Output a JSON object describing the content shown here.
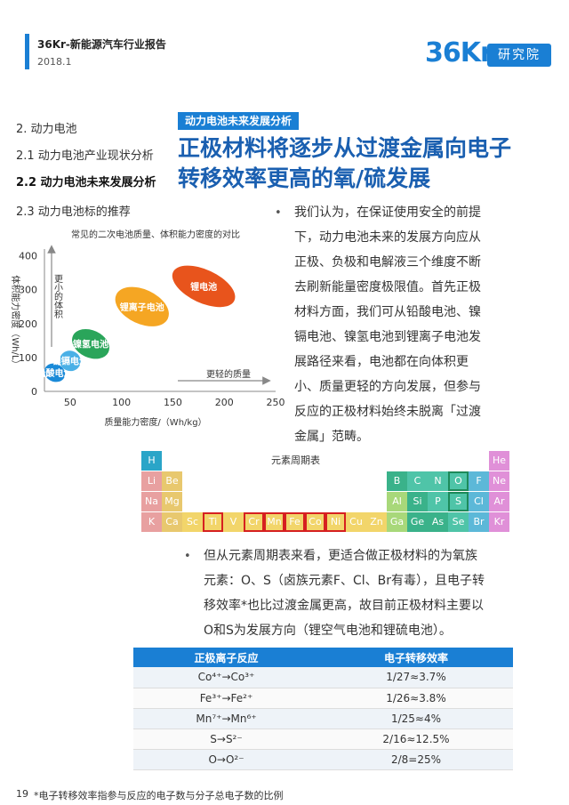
{
  "header": {
    "title": "36Kr-新能源汽车行业报告",
    "date": "2018.1",
    "logo_num": "36Kr",
    "logo_text": "研究院"
  },
  "nav": {
    "items": [
      {
        "label": "2. 动力电池"
      },
      {
        "label": "2.1 动力电池产业现状分析"
      },
      {
        "label": "2.2 动力电池未来发展分析"
      },
      {
        "label": "2.3 动力电池标的推荐"
      }
    ]
  },
  "section": {
    "tag": "动力电池未来发展分析",
    "heading": "正极材料将逐步从过渡金属向电子转移效率更高的氧/硫发展"
  },
  "chart_data": {
    "type": "bubble",
    "title": "常见的二次电池质量、体积能力密度的对比",
    "xlabel": "质量能力密度/（Wh/kg）",
    "ylabel": "体积能力密度（Wh/L）",
    "xticks": [
      50,
      100,
      150,
      200,
      250
    ],
    "yticks": [
      0,
      100,
      200,
      300,
      400
    ],
    "xlim": [
      25,
      250
    ],
    "ylim": [
      0,
      420
    ],
    "arrow_x_label": "更轻的质量",
    "arrow_y_label": "更小的体积",
    "series": [
      {
        "name": "铅酸电池",
        "x": 35,
        "y": 55,
        "rx": 12,
        "ry": 45,
        "color": "#1a8ad8"
      },
      {
        "name": "镍镉电池",
        "x": 50,
        "y": 90,
        "rx": 12,
        "ry": 55,
        "color": "#4ab0e6"
      },
      {
        "name": "镍氢电池",
        "x": 70,
        "y": 140,
        "rx": 22,
        "ry": 85,
        "color": "#2aa55a"
      },
      {
        "name": "锂离子电池",
        "x": 120,
        "y": 250,
        "rx": 32,
        "ry": 115,
        "color": "#f5a623"
      },
      {
        "name": "锂电池",
        "x": 180,
        "y": 310,
        "rx": 38,
        "ry": 110,
        "color": "#e8541c"
      }
    ]
  },
  "para1": {
    "bullet": "•",
    "lines": [
      "我们认为，在保证使用安全的前提",
      "下，动力电池未来的发展方向应从",
      "正极、负极和电解液三个维度不断",
      "去刷新能量密度极限值。首先正极",
      "材料方面，我们可从铅酸电池、镍",
      "镉电池、镍氢电池到锂离子电池发",
      "展路径来看，电池都在向体积更",
      "小、质量更轻的方向发展，但参与",
      "反应的正极材料始终未脱离「过渡",
      "金属」范畴。"
    ]
  },
  "periodic": {
    "title": "元素周期表",
    "colors": {
      "H": "#2aa5c8",
      "alkali": "#e8a0a0",
      "alkaline": "#e8c86e",
      "transition": "#f2d56a",
      "post": "#a8d87a",
      "metalloid": "#3ab28a",
      "nonmetal": "#4fc4a8",
      "halogen": "#5cb8d8",
      "noble": "#e090d8"
    },
    "cells": [
      {
        "sym": "H",
        "col": 0,
        "row": 0,
        "cat": "H"
      },
      {
        "sym": "He",
        "col": 17,
        "row": 0,
        "cat": "noble"
      },
      {
        "sym": "Li",
        "col": 0,
        "row": 1,
        "cat": "alkali"
      },
      {
        "sym": "Be",
        "col": 1,
        "row": 1,
        "cat": "alkaline"
      },
      {
        "sym": "B",
        "col": 12,
        "row": 1,
        "cat": "metalloid"
      },
      {
        "sym": "C",
        "col": 13,
        "row": 1,
        "cat": "nonmetal"
      },
      {
        "sym": "N",
        "col": 14,
        "row": 1,
        "cat": "nonmetal"
      },
      {
        "sym": "O",
        "col": 15,
        "row": 1,
        "cat": "nonmetal",
        "highlight": "green"
      },
      {
        "sym": "F",
        "col": 16,
        "row": 1,
        "cat": "halogen"
      },
      {
        "sym": "Ne",
        "col": 17,
        "row": 1,
        "cat": "noble"
      },
      {
        "sym": "Na",
        "col": 0,
        "row": 2,
        "cat": "alkali"
      },
      {
        "sym": "Mg",
        "col": 1,
        "row": 2,
        "cat": "alkaline"
      },
      {
        "sym": "Al",
        "col": 12,
        "row": 2,
        "cat": "post"
      },
      {
        "sym": "Si",
        "col": 13,
        "row": 2,
        "cat": "metalloid"
      },
      {
        "sym": "P",
        "col": 14,
        "row": 2,
        "cat": "nonmetal"
      },
      {
        "sym": "S",
        "col": 15,
        "row": 2,
        "cat": "nonmetal",
        "highlight": "green"
      },
      {
        "sym": "Cl",
        "col": 16,
        "row": 2,
        "cat": "halogen"
      },
      {
        "sym": "Ar",
        "col": 17,
        "row": 2,
        "cat": "noble"
      },
      {
        "sym": "K",
        "col": 0,
        "row": 3,
        "cat": "alkali"
      },
      {
        "sym": "Ca",
        "col": 1,
        "row": 3,
        "cat": "alkaline"
      },
      {
        "sym": "Sc",
        "col": 2,
        "row": 3,
        "cat": "transition"
      },
      {
        "sym": "Ti",
        "col": 3,
        "row": 3,
        "cat": "transition",
        "highlight": "red"
      },
      {
        "sym": "V",
        "col": 4,
        "row": 3,
        "cat": "transition"
      },
      {
        "sym": "Cr",
        "col": 5,
        "row": 3,
        "cat": "transition",
        "highlight": "red"
      },
      {
        "sym": "Mn",
        "col": 6,
        "row": 3,
        "cat": "transition",
        "highlight": "red"
      },
      {
        "sym": "Fe",
        "col": 7,
        "row": 3,
        "cat": "transition",
        "highlight": "red"
      },
      {
        "sym": "Co",
        "col": 8,
        "row": 3,
        "cat": "transition",
        "highlight": "red"
      },
      {
        "sym": "Ni",
        "col": 9,
        "row": 3,
        "cat": "transition",
        "highlight": "red"
      },
      {
        "sym": "Cu",
        "col": 10,
        "row": 3,
        "cat": "transition"
      },
      {
        "sym": "Zn",
        "col": 11,
        "row": 3,
        "cat": "transition"
      },
      {
        "sym": "Ga",
        "col": 12,
        "row": 3,
        "cat": "post"
      },
      {
        "sym": "Ge",
        "col": 13,
        "row": 3,
        "cat": "metalloid"
      },
      {
        "sym": "As",
        "col": 14,
        "row": 3,
        "cat": "metalloid"
      },
      {
        "sym": "Se",
        "col": 15,
        "row": 3,
        "cat": "nonmetal"
      },
      {
        "sym": "Br",
        "col": 16,
        "row": 3,
        "cat": "halogen"
      },
      {
        "sym": "Kr",
        "col": 17,
        "row": 3,
        "cat": "noble"
      }
    ]
  },
  "para2": {
    "bullet": "•",
    "lines": [
      "但从元素周期表来看，更适合做正极材料的为氧族",
      "元素：O、S（卤族元素F、Cl、Br有毒），且电子转",
      "移效率*也比过渡金属更高，故目前正极材料主要以",
      "O和S为发展方向（锂空气电池和锂硫电池）。"
    ]
  },
  "table": {
    "headers": [
      "正极离子反应",
      "电子转移效率"
    ],
    "rows": [
      [
        "Co⁴⁺→Co³⁺",
        "1/27≈3.7%"
      ],
      [
        "Fe³⁺→Fe²⁺",
        "1/26≈3.8%"
      ],
      [
        "Mn⁷⁺→Mn⁶⁺",
        "1/25≈4%"
      ],
      [
        "S→S²⁻",
        "2/16≈12.5%"
      ],
      [
        "O→O²⁻",
        "2/8=25%"
      ]
    ]
  },
  "footer": {
    "page": "19",
    "note": "*电子转移效率指参与反应的电子数与分子总电子数的比例"
  }
}
